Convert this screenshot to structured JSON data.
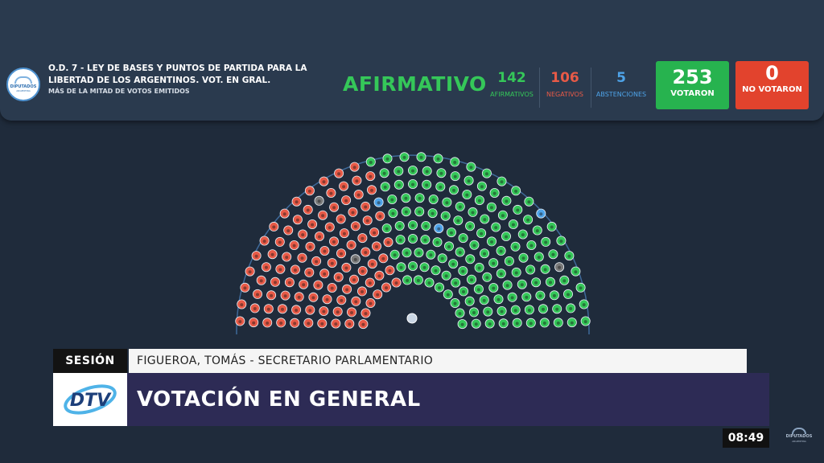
{
  "vote": {
    "logo_text": "DIPUTADOS",
    "logo_sub": "ARGENTINA",
    "title": "O.D. 7 - LEY DE BASES Y PUNTOS DE PARTIDA PARA LA LIBERTAD DE LOS ARGENTINOS. VOT. EN GRAL.",
    "majority_rule": "MÁS DE LA MITAD DE VOTOS EMITIDOS",
    "result": "AFIRMATIVO",
    "afirmativos": {
      "value": "142",
      "label": "AFIRMATIVOS"
    },
    "negativos": {
      "value": "106",
      "label": "NEGATIVOS"
    },
    "abstenciones": {
      "value": "5",
      "label": "ABSTENCIONES"
    },
    "votaron": {
      "value": "253",
      "label": "VOTARON"
    },
    "no_votaron": {
      "value": "0",
      "label": "NO VOTARON"
    }
  },
  "colors": {
    "afirmativo": "#35c759",
    "negativo": "#e85a47",
    "abstencion": "#4ea3e8",
    "absent": "#7a7a7a"
  },
  "hemicycle": {
    "rows": 10,
    "seats_per_row": [
      14,
      17,
      20,
      23,
      25,
      28,
      30,
      33,
      35,
      32
    ]
  },
  "lower_third": {
    "session_label": "SESIÓN",
    "speaker": "FIGUEROA, TOMÁS - SECRETARIO PARLAMENTARIO",
    "channel_logo": "DTV",
    "headline": "VOTACIÓN EN GENERAL"
  },
  "clock": "08:49",
  "corner_logo": {
    "text": "DIPUTADOS",
    "sub": "ARGENTINA"
  }
}
